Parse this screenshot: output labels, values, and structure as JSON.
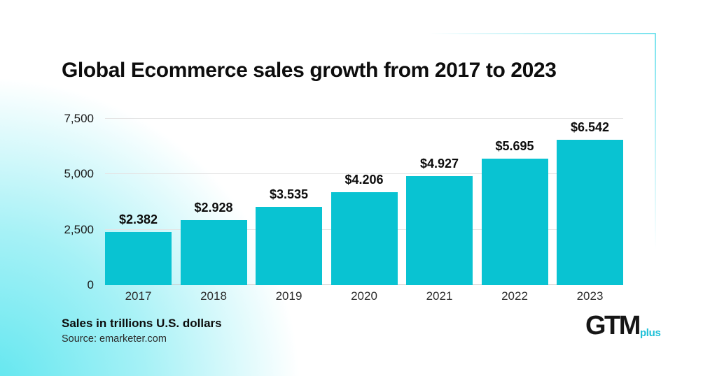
{
  "title": "Global Ecommerce sales growth from 2017 to 2023",
  "footer": {
    "caption": "Sales in trillions U.S. dollars",
    "source": "Source: emarketer.com"
  },
  "logo": {
    "main": "GTM",
    "sub": "plus"
  },
  "colors": {
    "bar": "#09c3d2",
    "accent": "#1fc0d7",
    "accent_line": "#79e3ee",
    "background_tint": "#5ee6ef"
  },
  "chart_data": {
    "type": "bar",
    "title": "Global Ecommerce sales growth from 2017 to 2023",
    "categories": [
      "2017",
      "2018",
      "2019",
      "2020",
      "2021",
      "2022",
      "2023"
    ],
    "values": [
      2382,
      2928,
      3535,
      4206,
      4927,
      5695,
      6542
    ],
    "value_labels": [
      "$2.382",
      "$2.928",
      "$3.535",
      "$4.206",
      "$4.927",
      "$5.695",
      "$6.542"
    ],
    "xlabel": "",
    "ylabel": "Sales in trillions U.S. dollars",
    "ylim": [
      0,
      7500
    ],
    "yticks": [
      {
        "label": "0",
        "value": 0
      },
      {
        "label": "2,500",
        "value": 2500
      },
      {
        "label": "5,000",
        "value": 5000
      },
      {
        "label": "7,500",
        "value": 7500
      }
    ],
    "grid": true,
    "legend": false
  }
}
